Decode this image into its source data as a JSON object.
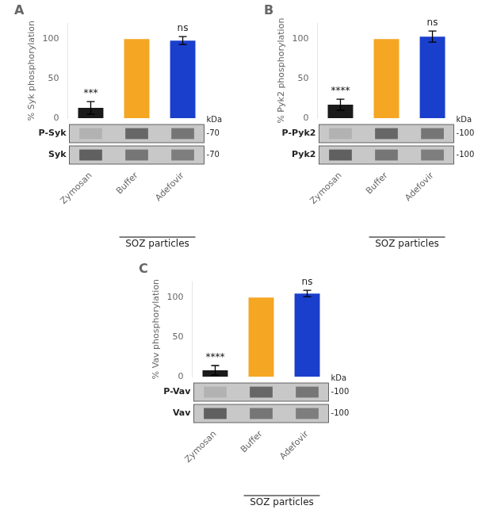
{
  "chart_data": [
    {
      "type": "bar",
      "title": "A",
      "ylabel": "% Syk phosphorylation",
      "categories": [
        "Zymosan",
        "Buffer",
        "Adefovir"
      ],
      "values": [
        13,
        100,
        98
      ],
      "errors": [
        8,
        0,
        5
      ],
      "colors": [
        "#1a1a1a",
        "#f5a623",
        "#1a3fcc"
      ],
      "annotations": [
        "***",
        null,
        "ns"
      ],
      "ylim": [
        0,
        120
      ],
      "yticks": [
        0,
        50,
        100
      ],
      "grid": false,
      "blot_labels": [
        "P-Syk",
        "Syk"
      ],
      "kda_labels": [
        "-70",
        "-70"
      ],
      "kda_title": "kDa",
      "group_label": "SOZ particles",
      "group_categories": [
        "Buffer",
        "Adefovir"
      ]
    },
    {
      "type": "bar",
      "title": "B",
      "ylabel": "% Pyk2 phosphorylation",
      "categories": [
        "Zymosan",
        "Buffer",
        "Adefovir"
      ],
      "values": [
        17,
        100,
        103
      ],
      "errors": [
        7,
        0,
        7
      ],
      "colors": [
        "#1a1a1a",
        "#f5a623",
        "#1a3fcc"
      ],
      "annotations": [
        "****",
        null,
        "ns"
      ],
      "ylim": [
        0,
        120
      ],
      "yticks": [
        0,
        50,
        100
      ],
      "grid": false,
      "blot_labels": [
        "P-Pyk2",
        "Pyk2"
      ],
      "kda_labels": [
        "-100",
        "-100"
      ],
      "kda_title": "kDa",
      "group_label": "SOZ particles",
      "group_categories": [
        "Buffer",
        "Adefovir"
      ]
    },
    {
      "type": "bar",
      "title": "C",
      "ylabel": "% Vav phosphorylation",
      "categories": [
        "Zymosan",
        "Buffer",
        "Adefovir"
      ],
      "values": [
        8,
        100,
        105
      ],
      "errors": [
        6,
        0,
        4
      ],
      "colors": [
        "#1a1a1a",
        "#f5a623",
        "#1a3fcc"
      ],
      "annotations": [
        "****",
        null,
        "ns"
      ],
      "ylim": [
        0,
        120
      ],
      "yticks": [
        0,
        50,
        100
      ],
      "grid": false,
      "blot_labels": [
        "P-Vav",
        "Vav"
      ],
      "kda_labels": [
        "-100",
        "-100"
      ],
      "kda_title": "kDa",
      "group_label": "SOZ particles",
      "group_categories": [
        "Buffer",
        "Adefovir"
      ]
    }
  ]
}
